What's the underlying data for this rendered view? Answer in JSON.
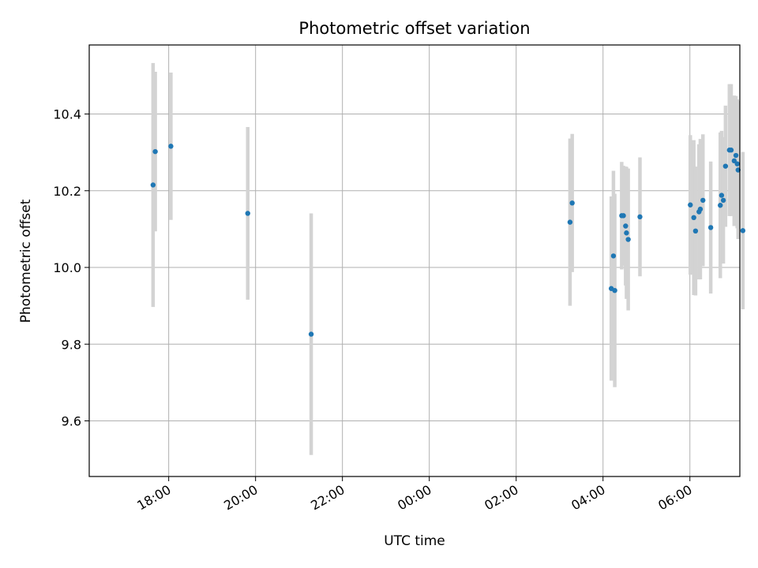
{
  "chart_data": {
    "type": "scatter",
    "title": "Photometric offset variation",
    "xlabel": "UTC time",
    "ylabel": "Photometric offset",
    "x_unit": "hours since 00:00 on the first day shown (values ≥ 24 are next day)",
    "xlim": [
      16.17,
      31.15
    ],
    "ylim": [
      9.455,
      10.58
    ],
    "x_ticks": [
      {
        "value": 18,
        "label": "18:00"
      },
      {
        "value": 20,
        "label": "20:00"
      },
      {
        "value": 22,
        "label": "22:00"
      },
      {
        "value": 24,
        "label": "00:00"
      },
      {
        "value": 26,
        "label": "02:00"
      },
      {
        "value": 28,
        "label": "04:00"
      },
      {
        "value": 30,
        "label": "06:00"
      }
    ],
    "y_ticks": [
      {
        "value": 9.6,
        "label": "9.6"
      },
      {
        "value": 9.8,
        "label": "9.8"
      },
      {
        "value": 10.0,
        "label": "10.0"
      },
      {
        "value": 10.2,
        "label": "10.2"
      },
      {
        "value": 10.4,
        "label": "10.4"
      }
    ],
    "grid": true,
    "marker_color": "#1f77b4",
    "errorbar_color": "#d3d3d3",
    "points": [
      {
        "x": 17.64,
        "y": 10.215,
        "err": 0.318
      },
      {
        "x": 17.69,
        "y": 10.302,
        "err": 0.208
      },
      {
        "x": 18.05,
        "y": 10.316,
        "err": 0.192
      },
      {
        "x": 19.82,
        "y": 10.141,
        "err": 0.225
      },
      {
        "x": 21.28,
        "y": 9.826,
        "err": 0.315
      },
      {
        "x": 27.24,
        "y": 10.118,
        "err": 0.218
      },
      {
        "x": 27.29,
        "y": 10.168,
        "err": 0.18
      },
      {
        "x": 28.19,
        "y": 9.945,
        "err": 0.24
      },
      {
        "x": 28.24,
        "y": 10.03,
        "err": 0.222
      },
      {
        "x": 28.27,
        "y": 9.94,
        "err": 0.252
      },
      {
        "x": 28.43,
        "y": 10.135,
        "err": 0.14
      },
      {
        "x": 28.47,
        "y": 10.135,
        "err": 0.13
      },
      {
        "x": 28.52,
        "y": 10.108,
        "err": 0.155
      },
      {
        "x": 28.54,
        "y": 10.09,
        "err": 0.172
      },
      {
        "x": 28.58,
        "y": 10.073,
        "err": 0.185
      },
      {
        "x": 28.85,
        "y": 10.132,
        "err": 0.155
      },
      {
        "x": 30.01,
        "y": 10.163,
        "err": 0.182
      },
      {
        "x": 30.09,
        "y": 10.13,
        "err": 0.202
      },
      {
        "x": 30.13,
        "y": 10.095,
        "err": 0.168
      },
      {
        "x": 30.21,
        "y": 10.145,
        "err": 0.176
      },
      {
        "x": 30.24,
        "y": 10.152,
        "err": 0.183
      },
      {
        "x": 30.3,
        "y": 10.175,
        "err": 0.172
      },
      {
        "x": 30.48,
        "y": 10.104,
        "err": 0.172
      },
      {
        "x": 30.7,
        "y": 10.162,
        "err": 0.19
      },
      {
        "x": 30.73,
        "y": 10.188,
        "err": 0.168
      },
      {
        "x": 30.77,
        "y": 10.175,
        "err": 0.165
      },
      {
        "x": 30.82,
        "y": 10.264,
        "err": 0.158
      },
      {
        "x": 30.91,
        "y": 10.306,
        "err": 0.172
      },
      {
        "x": 30.95,
        "y": 10.306,
        "err": 0.172
      },
      {
        "x": 31.02,
        "y": 10.278,
        "err": 0.17
      },
      {
        "x": 31.06,
        "y": 10.292,
        "err": 0.155
      },
      {
        "x": 31.09,
        "y": 10.27,
        "err": 0.168
      },
      {
        "x": 31.11,
        "y": 10.254,
        "err": 0.18
      },
      {
        "x": 31.22,
        "y": 10.096,
        "err": 0.205
      }
    ]
  }
}
